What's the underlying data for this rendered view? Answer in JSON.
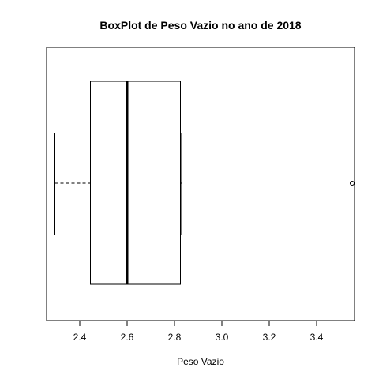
{
  "chart_data": {
    "type": "boxplot",
    "orientation": "horizontal",
    "title": "BoxPlot de Peso Vazio no ano de 2018",
    "xlabel": "Peso Vazio",
    "ylabel": "",
    "xlim": [
      2.26,
      3.56
    ],
    "ticks": [
      2.4,
      2.6,
      2.8,
      3.0,
      3.2,
      3.4
    ],
    "tick_labels": [
      "2.4",
      "2.6",
      "2.8",
      "3.0",
      "3.2",
      "3.4"
    ],
    "box": {
      "whisker_low": 2.295,
      "q1": 2.445,
      "median": 2.6,
      "q3": 2.825,
      "whisker_high": 2.83
    },
    "outliers": [
      3.55
    ],
    "grid": false
  }
}
